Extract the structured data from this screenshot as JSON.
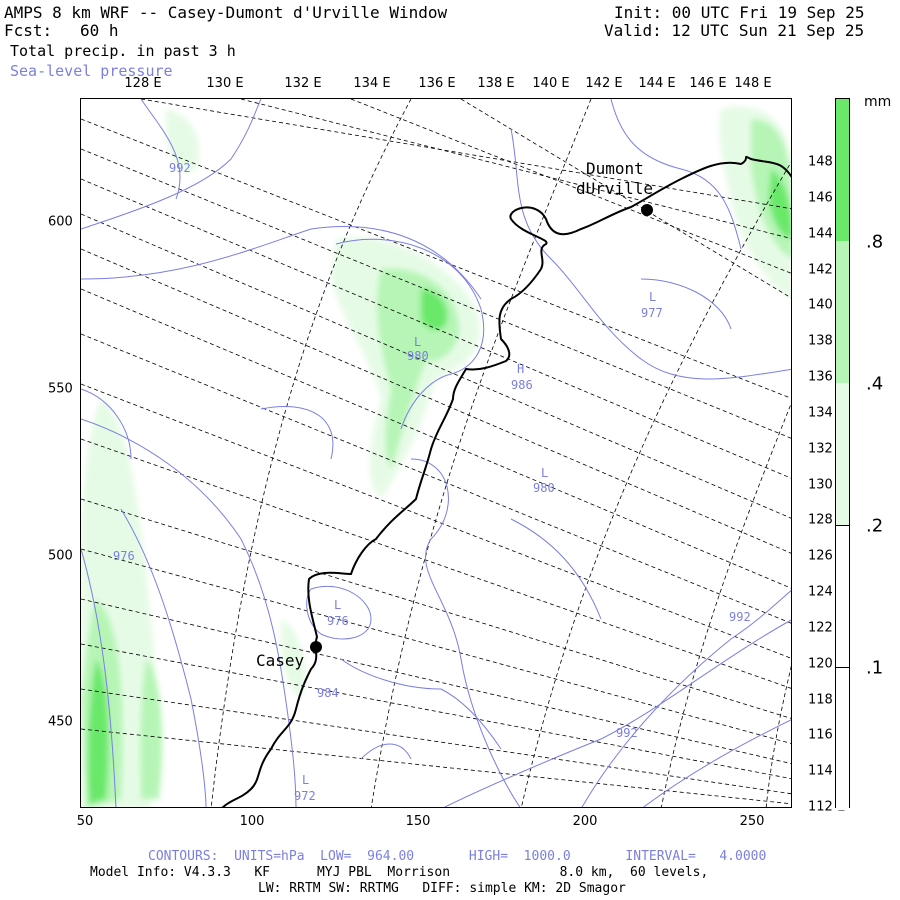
{
  "header": {
    "title_left": "AMPS 8 km WRF -- Casey-Dumont d'Urville Window",
    "fcst_label": "Fcst:",
    "fcst_value": "60 h",
    "field_primary": "Total precip. in past 3 h",
    "field_secondary": "Sea-level pressure",
    "init": "Init: 00 UTC Fri 19 Sep 25",
    "valid": "Valid: 12 UTC Sun 21 Sep 25"
  },
  "axes": {
    "top_longitudes": [
      "128 E",
      "130 E",
      "132 E",
      "134 E",
      "136 E",
      "138 E",
      "140 E",
      "142 E",
      "144 E",
      "146 E",
      "148 E"
    ],
    "right_longitudes": [
      "148 E",
      "146 E",
      "144 E",
      "142 E",
      "140 E",
      "138 E",
      "136 E",
      "134 E",
      "132 E",
      "130 E",
      "128 E",
      "126 E",
      "124 E",
      "122 E",
      "120 E",
      "118 E",
      "116 E",
      "114 E",
      "112 E"
    ],
    "left_y_ticks": [
      "600",
      "550",
      "500",
      "450"
    ],
    "bottom_x_ticks": [
      "50",
      "100",
      "150",
      "200",
      "250"
    ]
  },
  "colorbar": {
    "unit": "mm",
    "levels": [
      ".1",
      ".2",
      ".4",
      ".8"
    ],
    "colors": [
      "#ffffff",
      "#e6fbe6",
      "#b6f5b6",
      "#6ae86a"
    ]
  },
  "stations": [
    {
      "name_line1": "Dumont",
      "name_line2": "dUrville"
    },
    {
      "name_line1": "Casey",
      "name_line2": ""
    }
  ],
  "pressure_labels": [
    {
      "letter": "",
      "value": "992"
    },
    {
      "letter": "L",
      "value": "980"
    },
    {
      "letter": "H",
      "value": "986"
    },
    {
      "letter": "L",
      "value": "977"
    },
    {
      "letter": "L",
      "value": "980"
    },
    {
      "letter": "",
      "value": "976"
    },
    {
      "letter": "L",
      "value": "976"
    },
    {
      "letter": "",
      "value": "984"
    },
    {
      "letter": "L",
      "value": "972"
    },
    {
      "letter": "",
      "value": "992"
    },
    {
      "letter": "",
      "value": "992"
    }
  ],
  "footer": {
    "contours": "CONTOURS:  UNITS=hPa  LOW=  964.00       HIGH=  1000.0       INTERVAL=   4.0000",
    "model_info": "Model Info: V4.3.3   KF      MYJ PBL  Morrison              8.0 km,  60 levels,",
    "physics": "LW: RRTM SW: RRTMG   DIFF: simple KM: 2D Smagor"
  },
  "colors": {
    "contour": "#7b7fe0",
    "precip_light": "#e6fbe6",
    "precip_mid": "#b6f5b6",
    "precip_heavy": "#6ae86a",
    "coastline": "#000000",
    "grid": "#000000"
  }
}
